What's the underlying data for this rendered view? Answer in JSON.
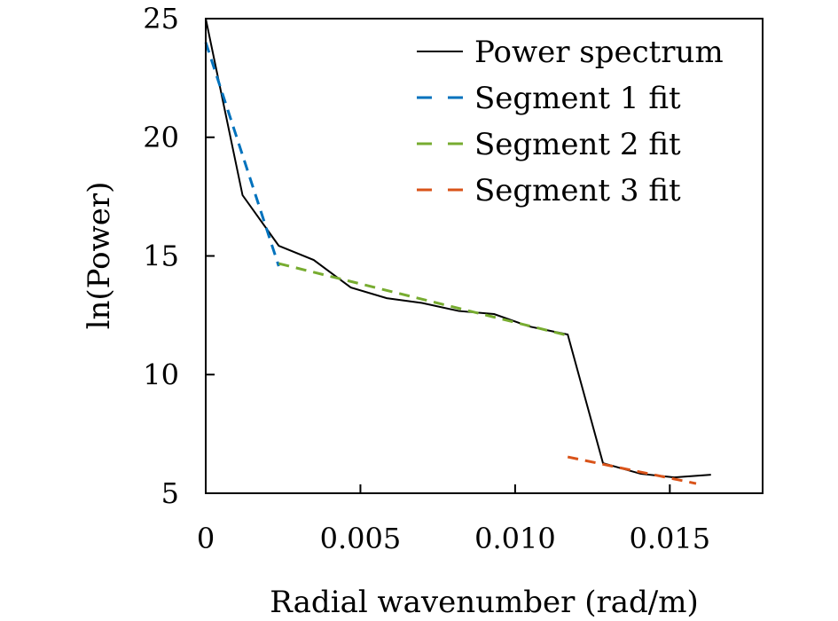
{
  "chart_data": {
    "type": "line",
    "title": "",
    "xlabel": "Radial wavenumber (rad/m)",
    "ylabel": "ln(Power)",
    "xlim": [
      0,
      0.018
    ],
    "ylim": [
      5,
      25
    ],
    "xticks": [
      0,
      0.005,
      0.01,
      0.015
    ],
    "xtick_labels": [
      "0",
      "0.005",
      "0.010",
      "0.015"
    ],
    "yticks": [
      5,
      10,
      15,
      20,
      25
    ],
    "ytick_labels": [
      "5",
      "10",
      "15",
      "20",
      "25"
    ],
    "grid": false,
    "legend_position": "top-right",
    "series": [
      {
        "name": "Power spectrum",
        "color": "#000000",
        "style": "solid",
        "x": [
          0,
          0.00119,
          0.00236,
          0.00349,
          0.00469,
          0.00585,
          0.00699,
          0.00818,
          0.00932,
          0.01045,
          0.0117,
          0.01284,
          0.01406,
          0.01514,
          0.01633
        ],
        "y": [
          25.0,
          17.56,
          15.43,
          14.83,
          13.67,
          13.22,
          13.02,
          12.68,
          12.55,
          12.03,
          11.69,
          6.27,
          5.82,
          5.67,
          5.78
        ]
      },
      {
        "name": "Segment 1 fit",
        "color": "#0072BD",
        "style": "dashed",
        "x": [
          0,
          0.00236
        ],
        "y": [
          24.0,
          14.57
        ]
      },
      {
        "name": "Segment 2 fit",
        "color": "#77AC30",
        "style": "dashed",
        "x": [
          0.00236,
          0.0117
        ],
        "y": [
          14.68,
          11.65
        ]
      },
      {
        "name": "Segment 3 fit",
        "color": "#D95319",
        "style": "dashed",
        "x": [
          0.0117,
          0.01585
        ],
        "y": [
          6.53,
          5.41
        ]
      }
    ]
  }
}
